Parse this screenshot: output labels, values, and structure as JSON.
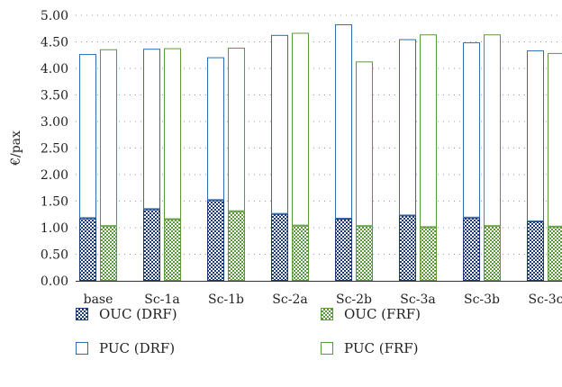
{
  "chart_data": {
    "type": "bar",
    "stacked": true,
    "ylabel": "€/pax",
    "ylim": [
      0,
      5
    ],
    "yticks": [
      "0.00",
      "0.50",
      "1.00",
      "1.50",
      "2.00",
      "2.50",
      "3.00",
      "3.50",
      "4.00",
      "4.50",
      "5.00"
    ],
    "grid": "horizontal dotted",
    "legend_position": "bottom",
    "categories": [
      "base",
      "Sc-1a",
      "Sc-1b",
      "Sc-2a",
      "Sc-2b",
      "Sc-3a",
      "Sc-3b",
      "Sc-3c"
    ],
    "groups": [
      {
        "name": "DRF",
        "color": "#1a3a7a",
        "stack": [
          {
            "name": "OUC (DRF)",
            "pattern": "checker-dark",
            "values": [
              1.18,
              1.35,
              1.52,
              1.26,
              1.17,
              1.23,
              1.19,
              1.12
            ]
          },
          {
            "name": "PUC (DRF)",
            "pattern": "outline-blue",
            "values": [
              3.09,
              3.02,
              2.69,
              3.37,
              3.66,
              3.32,
              3.3,
              3.22
            ]
          }
        ]
      },
      {
        "name": "FRF",
        "color": "#5a9a3a",
        "stack": [
          {
            "name": "OUC (FRF)",
            "pattern": "checker-green",
            "values": [
              1.03,
              1.16,
              1.31,
              1.04,
              1.03,
              1.01,
              1.03,
              1.02
            ]
          },
          {
            "name": "PUC (FRF)",
            "pattern": "outline-green",
            "values": [
              3.33,
              3.22,
              3.08,
              3.63,
              3.1,
              3.63,
              3.61,
              3.27
            ]
          }
        ]
      }
    ],
    "legend": [
      {
        "label": "OUC (DRF)",
        "pattern": "checker-dark"
      },
      {
        "label": "OUC (FRF)",
        "pattern": "checker-green"
      },
      {
        "label": "PUC (DRF)",
        "pattern": "outline-blue"
      },
      {
        "label": "PUC (FRF)",
        "pattern": "outline-green"
      }
    ]
  }
}
